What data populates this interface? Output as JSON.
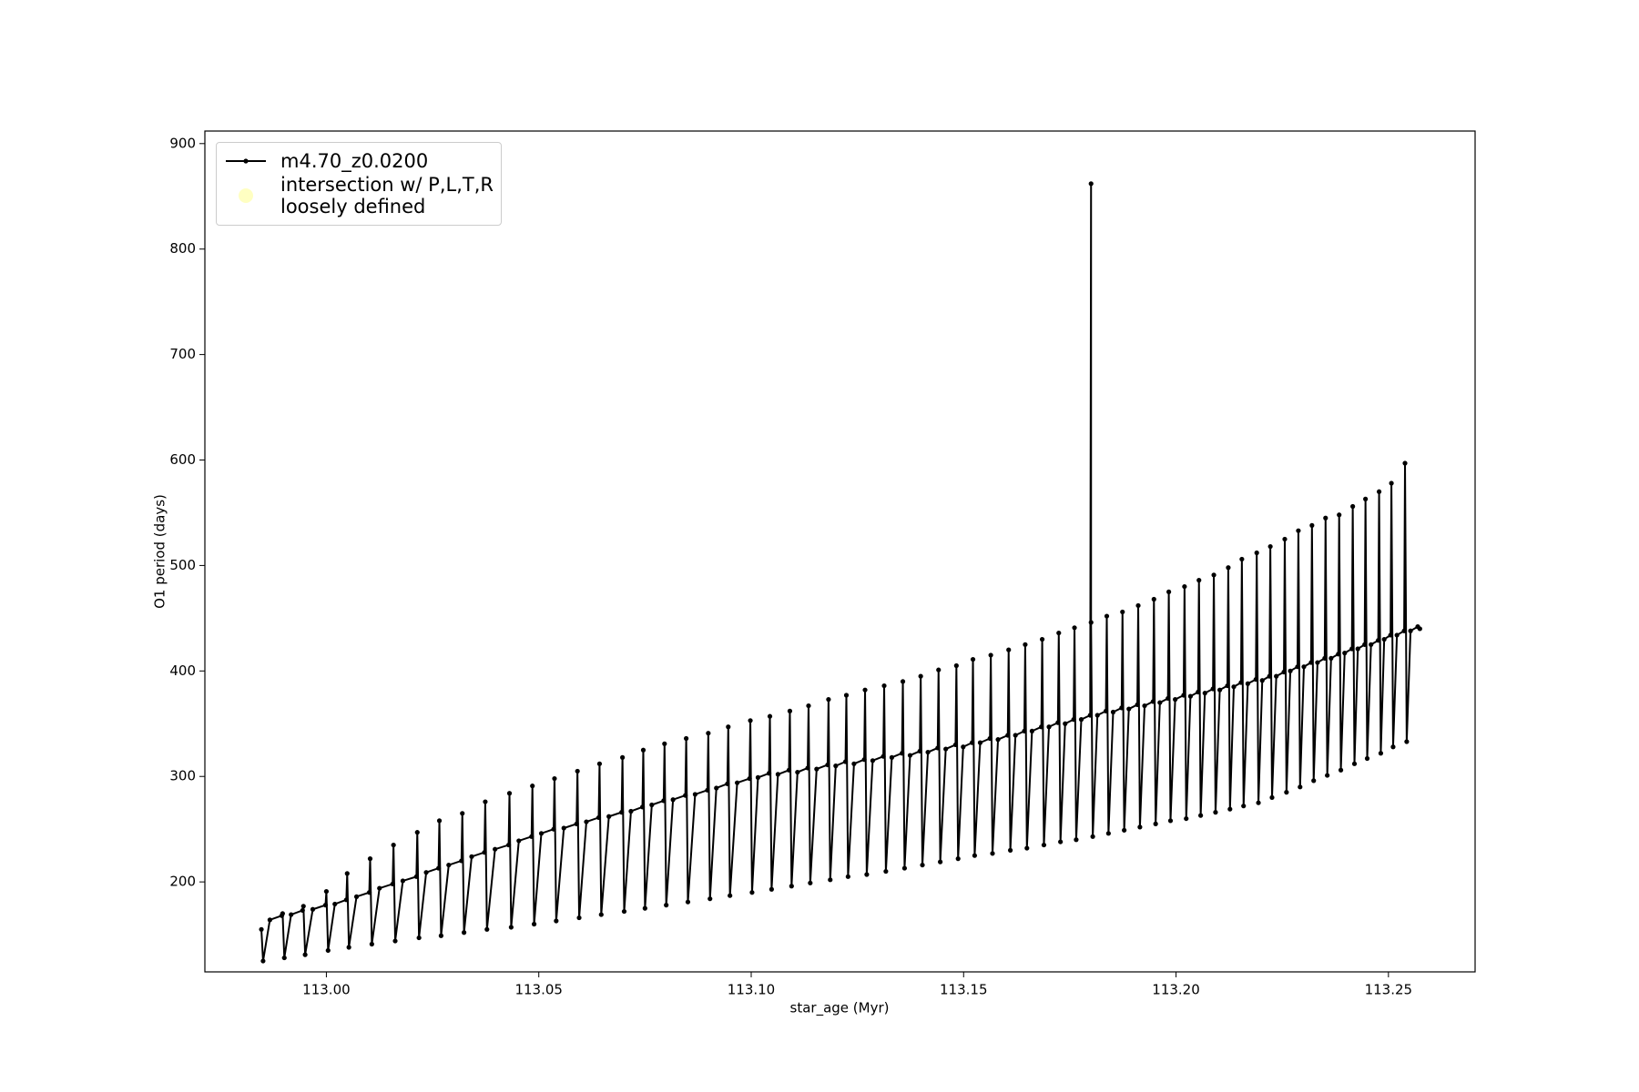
{
  "chart_data": {
    "type": "line",
    "xlabel": "star_age (Myr)",
    "ylabel": "O1 period (days)",
    "xlim": [
      112.9714,
      113.2704
    ],
    "ylim": [
      114.7,
      911.9
    ],
    "xticks": [
      {
        "value": 113,
        "label": "113.00"
      },
      113.05,
      {
        "value": 113.1,
        "label": "113.10"
      },
      113.15,
      {
        "value": 113.2,
        "label": "113.20"
      },
      113.25
    ],
    "yticks": [
      200,
      300,
      400,
      500,
      600,
      700,
      800,
      900
    ],
    "grid": false,
    "legend_loc": "upper left",
    "series": [
      {
        "name": "m4.70_z0.0200",
        "color": "#000000",
        "x": [
          112.9847,
          112.9851,
          112.9867,
          112.9895,
          112.9897,
          112.9901,
          112.9917,
          112.9944,
          112.9946,
          112.995,
          112.9968,
          112.9998,
          113.0,
          113.0004,
          113.002,
          113.0047,
          113.0049,
          113.0053,
          113.0071,
          113.0101,
          113.0103,
          113.0107,
          113.0125,
          113.0156,
          113.0158,
          113.0162,
          113.018,
          113.0212,
          113.0214,
          113.0218,
          113.0235,
          113.0264,
          113.0266,
          113.027,
          113.0288,
          113.0318,
          113.032,
          113.0324,
          113.0342,
          113.0372,
          113.0374,
          113.0378,
          113.0397,
          113.0429,
          113.0431,
          113.0435,
          113.0453,
          113.0483,
          113.0485,
          113.0489,
          113.0506,
          113.0535,
          113.0537,
          113.0541,
          113.0559,
          113.0589,
          113.0591,
          113.0595,
          113.0612,
          113.0641,
          113.0643,
          113.0647,
          113.0665,
          113.0695,
          113.0697,
          113.0701,
          113.0717,
          113.0744,
          113.0746,
          113.075,
          113.0766,
          113.0794,
          113.0796,
          113.08,
          113.0816,
          113.0845,
          113.0847,
          113.0851,
          113.0868,
          113.0897,
          113.0899,
          113.0903,
          113.0918,
          113.0944,
          113.0946,
          113.095,
          113.0967,
          113.0996,
          113.0998,
          113.1002,
          113.1016,
          113.1042,
          113.1044,
          113.1048,
          113.1063,
          113.1089,
          113.1091,
          113.1095,
          113.1109,
          113.1133,
          113.1135,
          113.1139,
          113.1154,
          113.118,
          113.1182,
          113.1186,
          113.1199,
          113.1222,
          113.1224,
          113.1228,
          113.1242,
          113.1266,
          113.1268,
          113.1272,
          113.1286,
          113.1311,
          113.1313,
          113.1317,
          113.1331,
          113.1355,
          113.1357,
          113.1361,
          113.1374,
          113.1397,
          113.1399,
          113.1403,
          113.1416,
          113.1439,
          113.1441,
          113.1445,
          113.1458,
          113.1481,
          113.1483,
          113.1487,
          113.1499,
          113.152,
          113.1522,
          113.1526,
          113.1539,
          113.1562,
          113.1564,
          113.1568,
          113.1581,
          113.1604,
          113.1606,
          113.161,
          113.1622,
          113.1643,
          113.1645,
          113.1649,
          113.1661,
          113.1683,
          113.1685,
          113.1689,
          113.1701,
          113.1722,
          113.1724,
          113.1728,
          113.1739,
          113.1759,
          113.1761,
          113.1765,
          113.1777,
          113.1798,
          113.18,
          113.18,
          113.1804,
          113.1815,
          113.1835,
          113.1837,
          113.1841,
          113.1852,
          113.1872,
          113.1874,
          113.1878,
          113.1889,
          113.1909,
          113.1911,
          113.1915,
          113.1926,
          113.1946,
          113.1948,
          113.1952,
          113.1962,
          113.1981,
          113.1983,
          113.1987,
          113.1998,
          113.2018,
          113.202,
          113.2024,
          113.2034,
          113.2052,
          113.2054,
          113.2058,
          113.2068,
          113.2087,
          113.2089,
          113.2093,
          113.2103,
          113.2121,
          113.2123,
          113.2127,
          113.2136,
          113.2153,
          113.2155,
          113.2159,
          113.2169,
          113.2188,
          113.219,
          113.2194,
          113.2203,
          113.222,
          113.2222,
          113.2226,
          113.2236,
          113.2254,
          113.2256,
          113.226,
          113.2269,
          113.2286,
          113.2288,
          113.2292,
          113.2301,
          113.2318,
          113.232,
          113.2324,
          113.2333,
          113.235,
          113.2352,
          113.2356,
          113.2365,
          113.2382,
          113.2384,
          113.2388,
          113.2397,
          113.2414,
          113.2416,
          113.242,
          113.2428,
          113.2444,
          113.2446,
          113.245,
          113.2459,
          113.2476,
          113.2478,
          113.2482,
          113.249,
          113.2505,
          113.2507,
          113.2511,
          113.252,
          113.2537,
          113.2539,
          113.2543,
          113.2552,
          113.2569,
          113.2574
        ],
        "values": [
          155,
          125,
          164,
          168,
          170,
          128,
          169,
          173,
          177,
          131,
          174,
          178,
          191,
          135,
          179,
          183,
          208,
          138,
          186,
          190,
          222,
          141,
          194,
          198,
          235,
          144,
          201,
          205,
          247,
          147,
          209,
          213,
          258,
          149,
          216,
          220,
          265,
          152,
          224,
          228,
          276,
          155,
          231,
          235,
          284,
          157,
          239,
          243,
          291,
          160,
          246,
          250,
          298,
          163,
          251,
          255,
          305,
          166,
          257,
          261,
          312,
          169,
          262,
          266,
          318,
          172,
          267,
          271,
          325,
          175,
          273,
          277,
          331,
          178,
          278,
          282,
          336,
          181,
          283,
          287,
          341,
          184,
          289,
          293,
          347,
          187,
          294,
          298,
          353,
          190,
          299,
          303,
          357,
          193,
          302,
          306,
          362,
          196,
          304,
          308,
          367,
          199,
          307,
          311,
          373,
          202,
          310,
          314,
          377,
          205,
          312,
          316,
          382,
          207,
          315,
          319,
          386,
          210,
          318,
          322,
          390,
          213,
          320,
          324,
          395,
          216,
          323,
          327,
          401,
          219,
          326,
          330,
          405,
          222,
          328,
          332,
          411,
          225,
          332,
          336,
          415,
          227,
          335,
          339,
          420,
          230,
          339,
          343,
          425,
          232,
          343,
          347,
          430,
          235,
          347,
          351,
          436,
          238,
          350,
          354,
          441,
          240,
          354,
          358,
          862,
          446,
          243,
          358,
          362,
          452,
          246,
          361,
          365,
          456,
          249,
          364,
          368,
          462,
          252,
          367,
          371,
          468,
          255,
          370,
          374,
          475,
          258,
          373,
          377,
          480,
          260,
          376,
          380,
          486,
          263,
          379,
          383,
          491,
          266,
          382,
          386,
          498,
          269,
          385,
          389,
          506,
          272,
          388,
          392,
          512,
          275,
          391,
          395,
          518,
          280,
          395,
          399,
          525,
          285,
          400,
          404,
          533,
          290,
          404,
          408,
          538,
          296,
          408,
          412,
          545,
          301,
          412,
          416,
          548,
          306,
          417,
          421,
          556,
          312,
          421,
          425,
          563,
          317,
          425,
          429,
          570,
          322,
          430,
          434,
          578,
          328,
          434,
          438,
          597,
          333,
          438,
          442,
          440
        ]
      },
      {
        "name": "intersection w/ P,L,T,R\nloosely defined",
        "color": "#ffffb3",
        "x": [],
        "values": []
      }
    ]
  }
}
